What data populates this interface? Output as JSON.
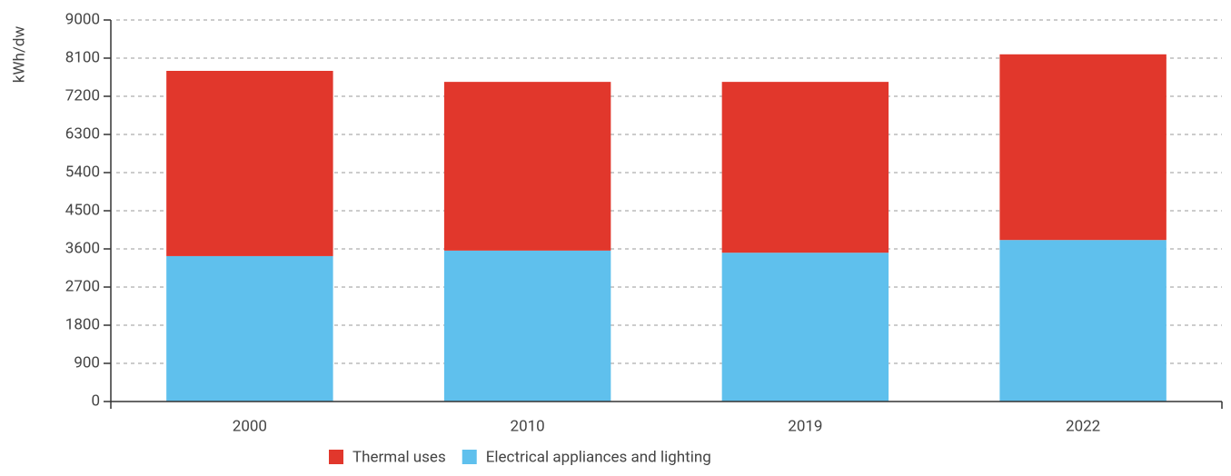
{
  "chart_data": {
    "type": "stacked_bar",
    "y_label": "kWh/dw",
    "categories": [
      "2000",
      "2010",
      "2019",
      "2022"
    ],
    "series": [
      {
        "name": "Thermal uses",
        "color": "#e1372c",
        "values": [
          4370,
          3980,
          4030,
          4380
        ]
      },
      {
        "name": "Electrical appliances and lighting",
        "color": "#5fc0ed",
        "values": [
          3430,
          3560,
          3510,
          3810
        ]
      }
    ],
    "ylim": [
      0,
      9000
    ],
    "yticks": [
      0,
      900,
      1800,
      2700,
      3600,
      4500,
      5400,
      6300,
      7200,
      8100,
      9000
    ],
    "grid": true,
    "legend": "bottom"
  }
}
